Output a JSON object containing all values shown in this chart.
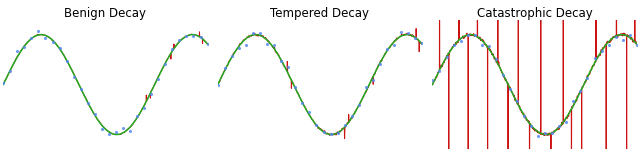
{
  "titles": [
    "Benign Decay",
    "Tempered Decay",
    "Catastrophic Decay"
  ],
  "figsize": [
    6.4,
    1.51
  ],
  "dpi": 100,
  "green_color": "#22aa22",
  "red_color": "#cc1111",
  "blue_color": "#5588ee",
  "title_fontsize": 8.5,
  "n_fine": 3000,
  "n_pts": 30,
  "freq": 1.35,
  "amplitude": 1.0
}
